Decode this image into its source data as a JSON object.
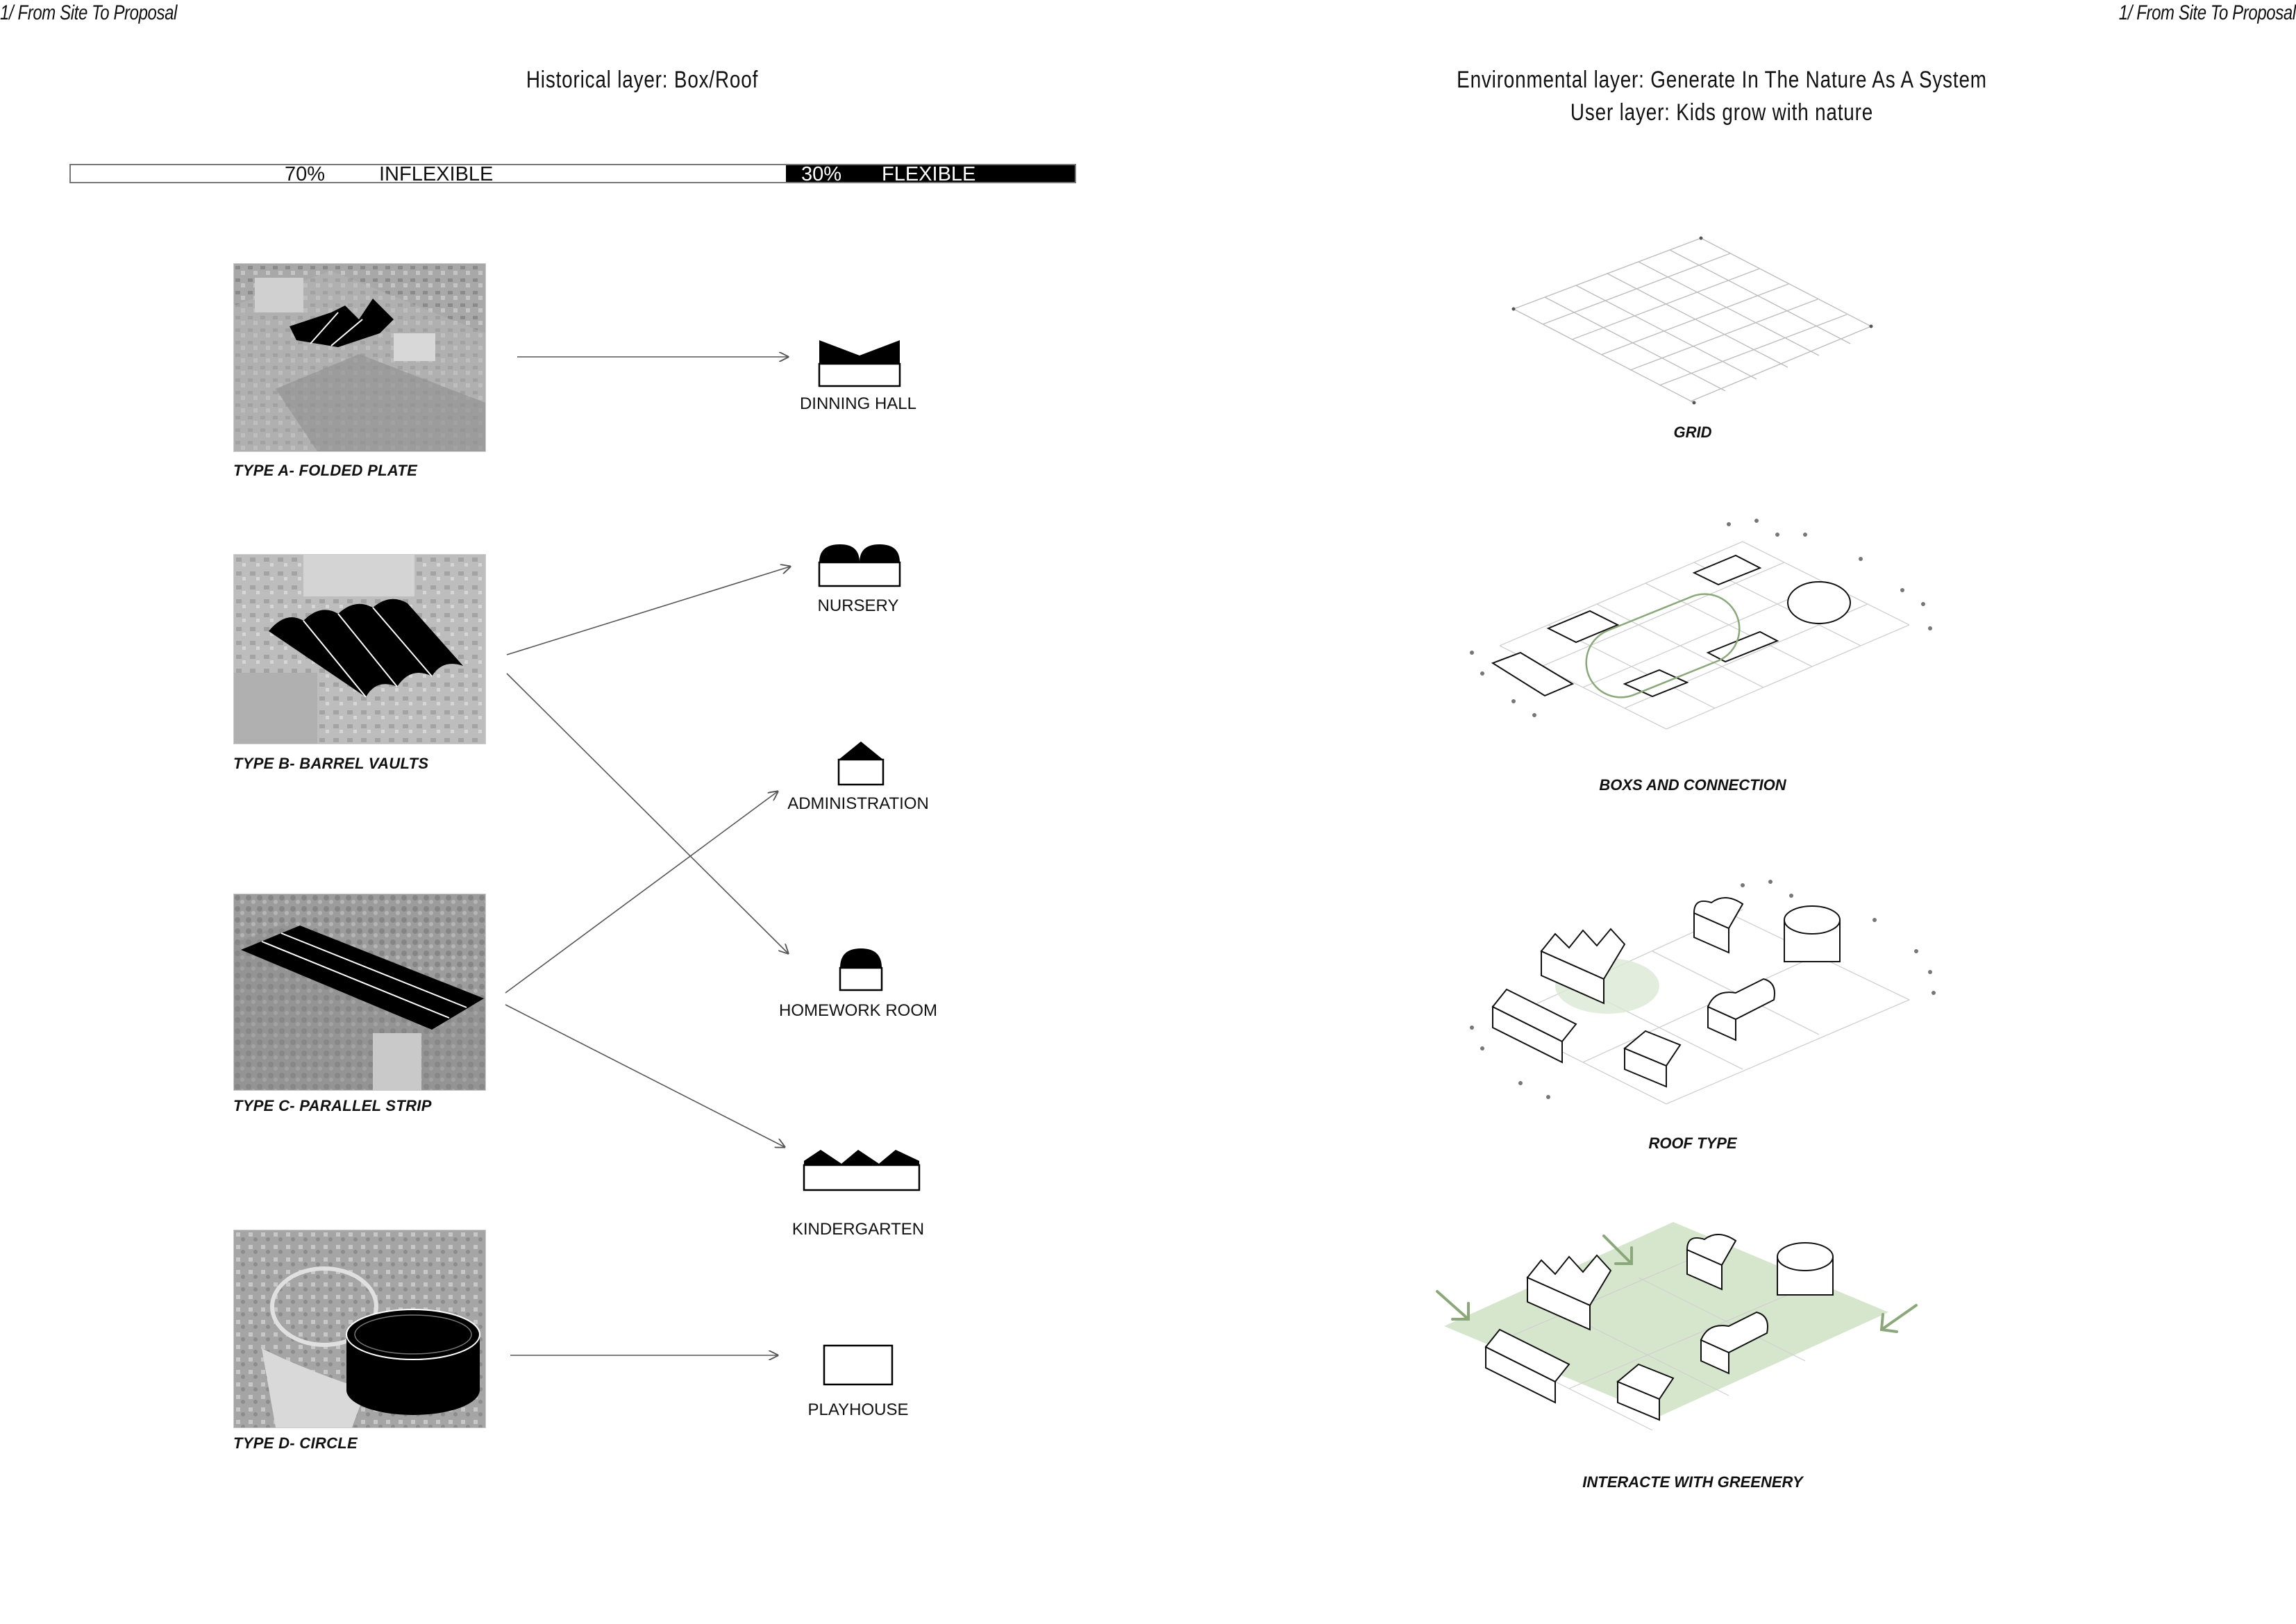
{
  "header": {
    "left": "1/ From Site To Proposal",
    "right": "1/ From Site To Proposal"
  },
  "left_panel": {
    "title": "Historical layer: Box/Roof",
    "ratio": {
      "inflexible_percent": "70%",
      "inflexible_label": "INFLEXIBLE",
      "flexible_percent": "30%",
      "flexible_label": "FLEXIBLE",
      "inflexible_fraction": 0.7,
      "flexible_fraction": 0.3
    },
    "types": [
      {
        "label": "TYPE A- FOLDED PLATE"
      },
      {
        "label": "TYPE B- BARREL VAULTS"
      },
      {
        "label": "TYPE C- PARALLEL STRIP"
      },
      {
        "label": "TYPE D- CIRCLE"
      }
    ],
    "spaces": [
      {
        "label": "DINNING HALL"
      },
      {
        "label": "NURSERY"
      },
      {
        "label": "ADMINISTRATION"
      },
      {
        "label": "HOMEWORK ROOM"
      },
      {
        "label": "KINDERGARTEN"
      },
      {
        "label": "PLAYHOUSE"
      }
    ],
    "connections": [
      [
        "TYPE A- FOLDED PLATE",
        "DINNING HALL"
      ],
      [
        "TYPE B- BARREL VAULTS",
        "NURSERY"
      ],
      [
        "TYPE B- BARREL VAULTS",
        "HOMEWORK ROOM"
      ],
      [
        "TYPE C- PARALLEL STRIP",
        "ADMINISTRATION"
      ],
      [
        "TYPE C- PARALLEL STRIP",
        "KINDERGARTEN"
      ],
      [
        "TYPE D- CIRCLE",
        "PLAYHOUSE"
      ]
    ]
  },
  "right_panel": {
    "title_line1": "Environmental layer: Generate In The Nature As A System",
    "title_line2": "User layer: Kids grow with nature",
    "diagrams": [
      {
        "label": "GRID"
      },
      {
        "label": "BOXS AND CONNECTION"
      },
      {
        "label": "ROOF TYPE"
      },
      {
        "label": "INTERACTE WITH GREENERY"
      }
    ]
  },
  "colors": {
    "ink": "#111111",
    "greenery": "#d6e6cc",
    "greenery_stroke": "#8aa87a",
    "photo_gray": "#9a9a9a"
  }
}
